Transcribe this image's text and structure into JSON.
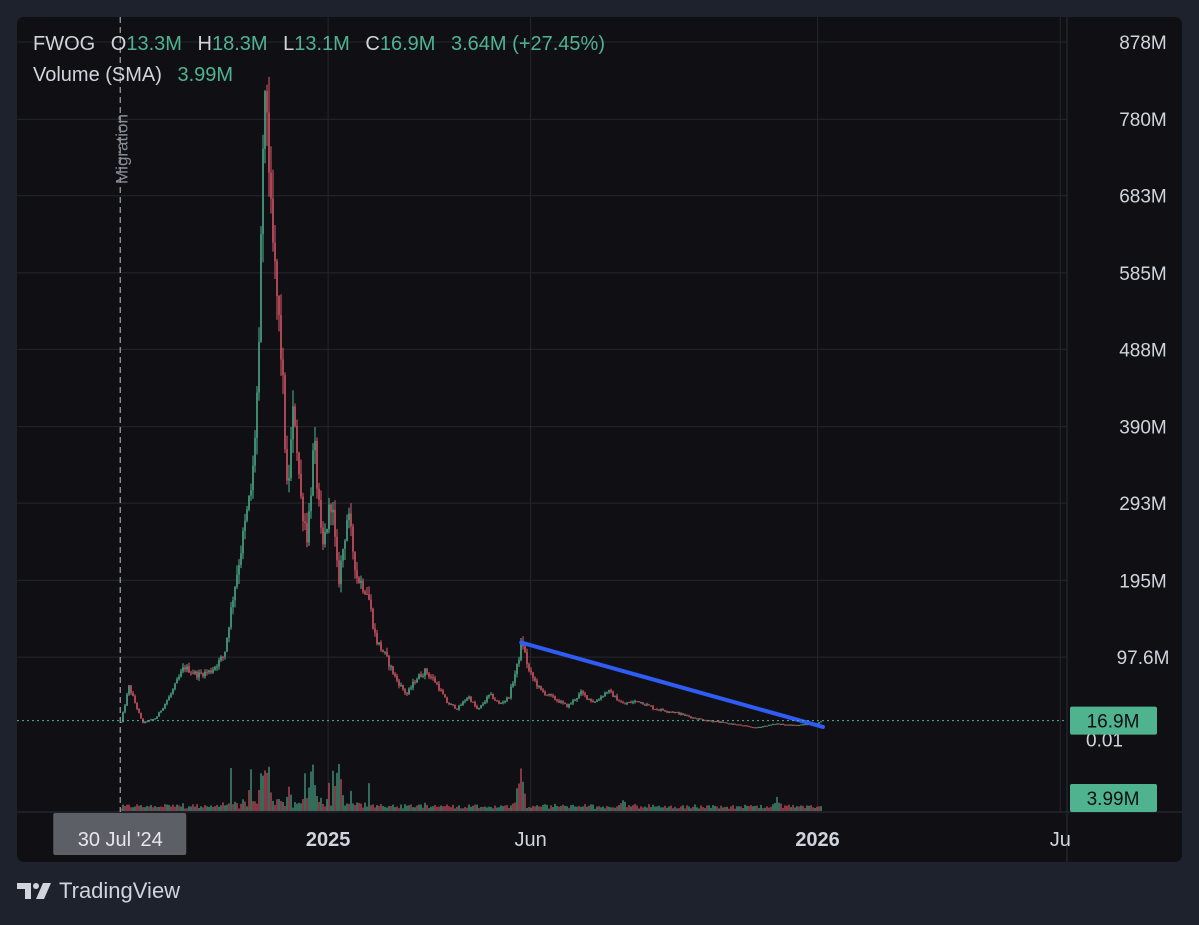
{
  "legend": {
    "symbol": "FWOG",
    "open_label": "O",
    "open": "13.3M",
    "high_label": "H",
    "high": "18.3M",
    "low_label": "L",
    "low": "13.1M",
    "close_label": "C",
    "close": "16.9M",
    "change": "3.64M",
    "change_pct": "(+27.45%)",
    "volume_label": "Volume (SMA)",
    "volume_value": "3.99M"
  },
  "footer": {
    "brand": "TradingView"
  },
  "colors": {
    "up": "#4fb38f",
    "down": "#e0596a",
    "trendline": "#2f5cf5",
    "badge": "#4fb38f",
    "event_line": "#9598a1"
  },
  "chart_data": {
    "type": "candlestick",
    "symbol": "FWOG",
    "y_axis": {
      "ticks": [
        "878M",
        "780M",
        "683M",
        "585M",
        "488M",
        "390M",
        "293M",
        "195M",
        "97.6M"
      ],
      "ylim": [
        0,
        878000000
      ],
      "partial_label": "0.01"
    },
    "x_axis": {
      "ticks": [
        {
          "label": "2025",
          "date": "2025-01-01",
          "bold": true
        },
        {
          "label": "Jun",
          "date": "2025-06-01",
          "bold": false
        },
        {
          "label": "2026",
          "date": "2026-01-01",
          "bold": true
        },
        {
          "label": "Ju",
          "date": "2026-07-01",
          "bold": false
        }
      ],
      "crosshair_label": "30 Jul '24",
      "xlim": [
        "2024-05-14",
        "2026-07-06"
      ]
    },
    "event": {
      "label": "Migration",
      "date": "2024-07-30"
    },
    "price_path": [
      [
        "2024-07-30",
        15000000
      ],
      [
        "2024-08-05",
        60000000
      ],
      [
        "2024-08-15",
        14000000
      ],
      [
        "2024-08-25",
        20000000
      ],
      [
        "2024-09-05",
        50000000
      ],
      [
        "2024-09-15",
        85000000
      ],
      [
        "2024-09-25",
        75000000
      ],
      [
        "2024-10-05",
        80000000
      ],
      [
        "2024-10-15",
        100000000
      ],
      [
        "2024-10-22",
        180000000
      ],
      [
        "2024-10-30",
        260000000
      ],
      [
        "2024-11-05",
        320000000
      ],
      [
        "2024-11-10",
        480000000
      ],
      [
        "2024-11-13",
        760000000
      ],
      [
        "2024-11-16",
        800000000
      ],
      [
        "2024-11-19",
        640000000
      ],
      [
        "2024-11-23",
        560000000
      ],
      [
        "2024-11-27",
        470000000
      ],
      [
        "2024-12-01",
        300000000
      ],
      [
        "2024-12-06",
        420000000
      ],
      [
        "2024-12-11",
        300000000
      ],
      [
        "2024-12-16",
        250000000
      ],
      [
        "2024-12-21",
        370000000
      ],
      [
        "2024-12-27",
        230000000
      ],
      [
        "2025-01-03",
        300000000
      ],
      [
        "2025-01-08",
        190000000
      ],
      [
        "2025-01-15",
        280000000
      ],
      [
        "2025-01-22",
        200000000
      ],
      [
        "2025-01-30",
        180000000
      ],
      [
        "2025-02-05",
        120000000
      ],
      [
        "2025-02-12",
        100000000
      ],
      [
        "2025-02-20",
        70000000
      ],
      [
        "2025-02-28",
        50000000
      ],
      [
        "2025-03-07",
        70000000
      ],
      [
        "2025-03-14",
        80000000
      ],
      [
        "2025-03-22",
        65000000
      ],
      [
        "2025-03-30",
        40000000
      ],
      [
        "2025-04-07",
        32000000
      ],
      [
        "2025-04-15",
        48000000
      ],
      [
        "2025-04-22",
        30000000
      ],
      [
        "2025-05-01",
        50000000
      ],
      [
        "2025-05-08",
        38000000
      ],
      [
        "2025-05-15",
        46000000
      ],
      [
        "2025-05-22",
        90000000
      ],
      [
        "2025-05-25",
        120000000
      ],
      [
        "2025-05-30",
        80000000
      ],
      [
        "2025-06-08",
        55000000
      ],
      [
        "2025-06-18",
        45000000
      ],
      [
        "2025-06-28",
        35000000
      ],
      [
        "2025-07-08",
        52000000
      ],
      [
        "2025-07-18",
        40000000
      ],
      [
        "2025-07-28",
        55000000
      ],
      [
        "2025-08-08",
        38000000
      ],
      [
        "2025-08-20",
        42000000
      ],
      [
        "2025-09-01",
        32000000
      ],
      [
        "2025-09-15",
        28000000
      ],
      [
        "2025-10-01",
        20000000
      ],
      [
        "2025-10-15",
        16000000
      ],
      [
        "2025-11-01",
        12000000
      ],
      [
        "2025-11-15",
        8000000
      ],
      [
        "2025-12-01",
        13000000
      ],
      [
        "2025-12-15",
        11000000
      ],
      [
        "2026-01-01",
        13300000
      ],
      [
        "2026-01-03",
        16900000
      ]
    ],
    "volume_spikes": [
      [
        "2024-11-13",
        1.0
      ],
      [
        "2024-12-20",
        0.95
      ],
      [
        "2025-01-08",
        1.0
      ],
      [
        "2025-05-24",
        0.85
      ],
      [
        "2025-08-08",
        0.25
      ],
      [
        "2025-12-01",
        0.3
      ]
    ],
    "last_price": {
      "value": 16900000,
      "label": "16.9M"
    },
    "last_volume": {
      "label": "3.99M"
    },
    "trendline": {
      "start": {
        "date": "2025-05-25",
        "value": 116000000
      },
      "end": {
        "date": "2026-01-05",
        "value": 9000000
      }
    },
    "grid": true
  }
}
